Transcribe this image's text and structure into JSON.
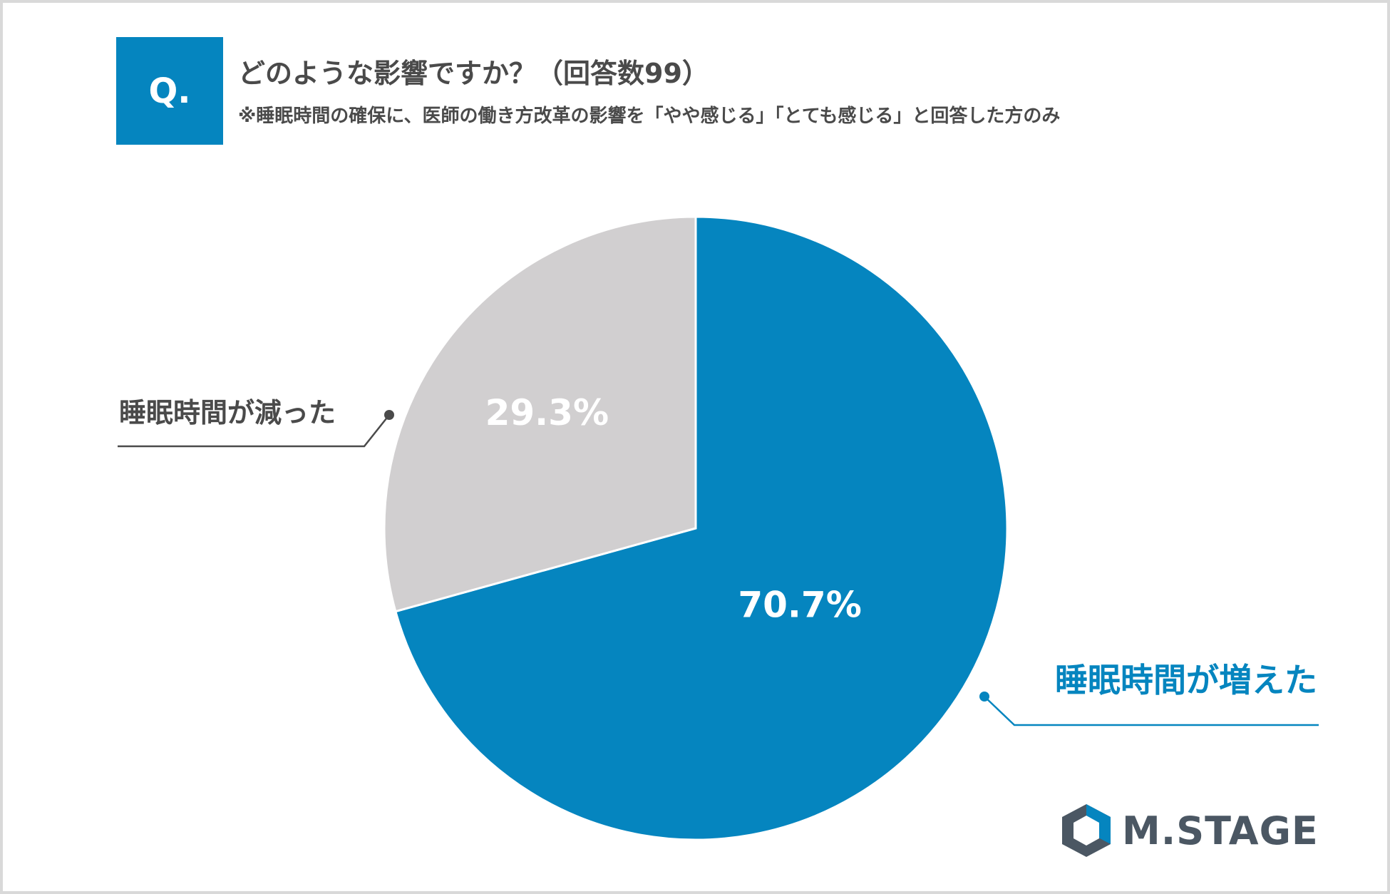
{
  "header": {
    "badge": "Q.",
    "title": "どのような影響ですか？（回答数99）",
    "note": "※睡眠時間の確保に、医師の働き方改革の影響を「やや感じる」「とても感じる」と回答した方のみ"
  },
  "chart_data": {
    "type": "pie",
    "slices": [
      {
        "label": "睡眠時間が増えた",
        "value": 70.7,
        "value_label": "70.7%",
        "color": "#0585bf",
        "label_color": "#0585bf"
      },
      {
        "label": "睡眠時間が減った",
        "value": 29.3,
        "value_label": "29.3%",
        "color": "#d1cfd0",
        "label_color": "#4a4a4a"
      }
    ]
  },
  "logo": {
    "text": "M.STAGE"
  },
  "colors": {
    "accent": "#0585bf",
    "gray_slice": "#d1cfd0",
    "text": "#4a4a4a"
  }
}
